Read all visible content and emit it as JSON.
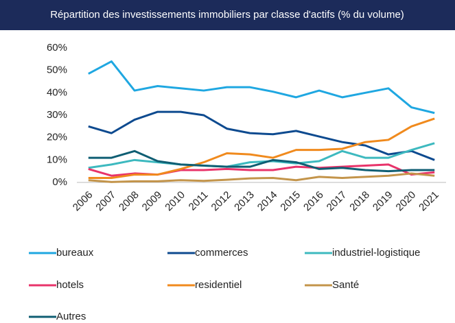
{
  "chart_data": {
    "type": "line",
    "title": "Répartition des investissements immobiliers par classe d'actifs (% du volume)",
    "categories": [
      "2006",
      "2007",
      "2008",
      "2009",
      "2010",
      "2011",
      "2012",
      "2013",
      "2014",
      "2015",
      "2016",
      "2017",
      "2018",
      "2019",
      "2020",
      "2021"
    ],
    "ylim": [
      0,
      60
    ],
    "yticks": [
      {
        "value": 0,
        "label": "0%"
      },
      {
        "value": 10,
        "label": "10%"
      },
      {
        "value": 20,
        "label": "20%"
      },
      {
        "value": 30,
        "label": "30%"
      },
      {
        "value": 40,
        "label": "40%"
      },
      {
        "value": 50,
        "label": "50%"
      },
      {
        "value": 60,
        "label": "60%"
      }
    ],
    "series": [
      {
        "name": "bureaux",
        "color": "#1fa7e1",
        "values": [
          48.5,
          54,
          41,
          43,
          42,
          41,
          42.5,
          42.5,
          40.5,
          38,
          41,
          38,
          40,
          42,
          33.5,
          31
        ]
      },
      {
        "name": "commerces",
        "color": "#0d4a8f",
        "values": [
          25,
          22,
          28,
          31.5,
          31.5,
          30,
          24,
          22,
          21.5,
          23,
          20.5,
          18,
          16.5,
          12.5,
          14,
          10
        ]
      },
      {
        "name": "industriel-logistique",
        "color": "#3db9bf",
        "values": [
          6.5,
          8,
          10,
          9,
          8,
          7.5,
          7,
          9,
          9.5,
          8.5,
          9.5,
          14,
          11,
          11,
          14.5,
          17.5
        ]
      },
      {
        "name": "hotels",
        "color": "#e8336a",
        "values": [
          6,
          3,
          4,
          3.5,
          5.5,
          5.5,
          6,
          5.5,
          5.5,
          7,
          6.5,
          7,
          7.5,
          8,
          3.5,
          4.5
        ]
      },
      {
        "name": "residentiel",
        "color": "#f08a1d",
        "values": [
          2,
          2,
          3.5,
          3.5,
          6,
          9,
          13,
          12.5,
          11,
          14.5,
          14.5,
          15,
          18,
          19,
          25,
          28.5
        ]
      },
      {
        "name": "Santé",
        "color": "#c3944a",
        "values": [
          1,
          0.2,
          0.5,
          0.5,
          1,
          0.7,
          1.2,
          1.8,
          2,
          1,
          2.5,
          2,
          2.5,
          3,
          4,
          3
        ]
      },
      {
        "name": "Autres",
        "color": "#0f5e73",
        "values": [
          11,
          11,
          14,
          9.5,
          8,
          7.5,
          7,
          7,
          10,
          9,
          6,
          6.5,
          5.5,
          5,
          5.5,
          5.5
        ]
      }
    ]
  }
}
